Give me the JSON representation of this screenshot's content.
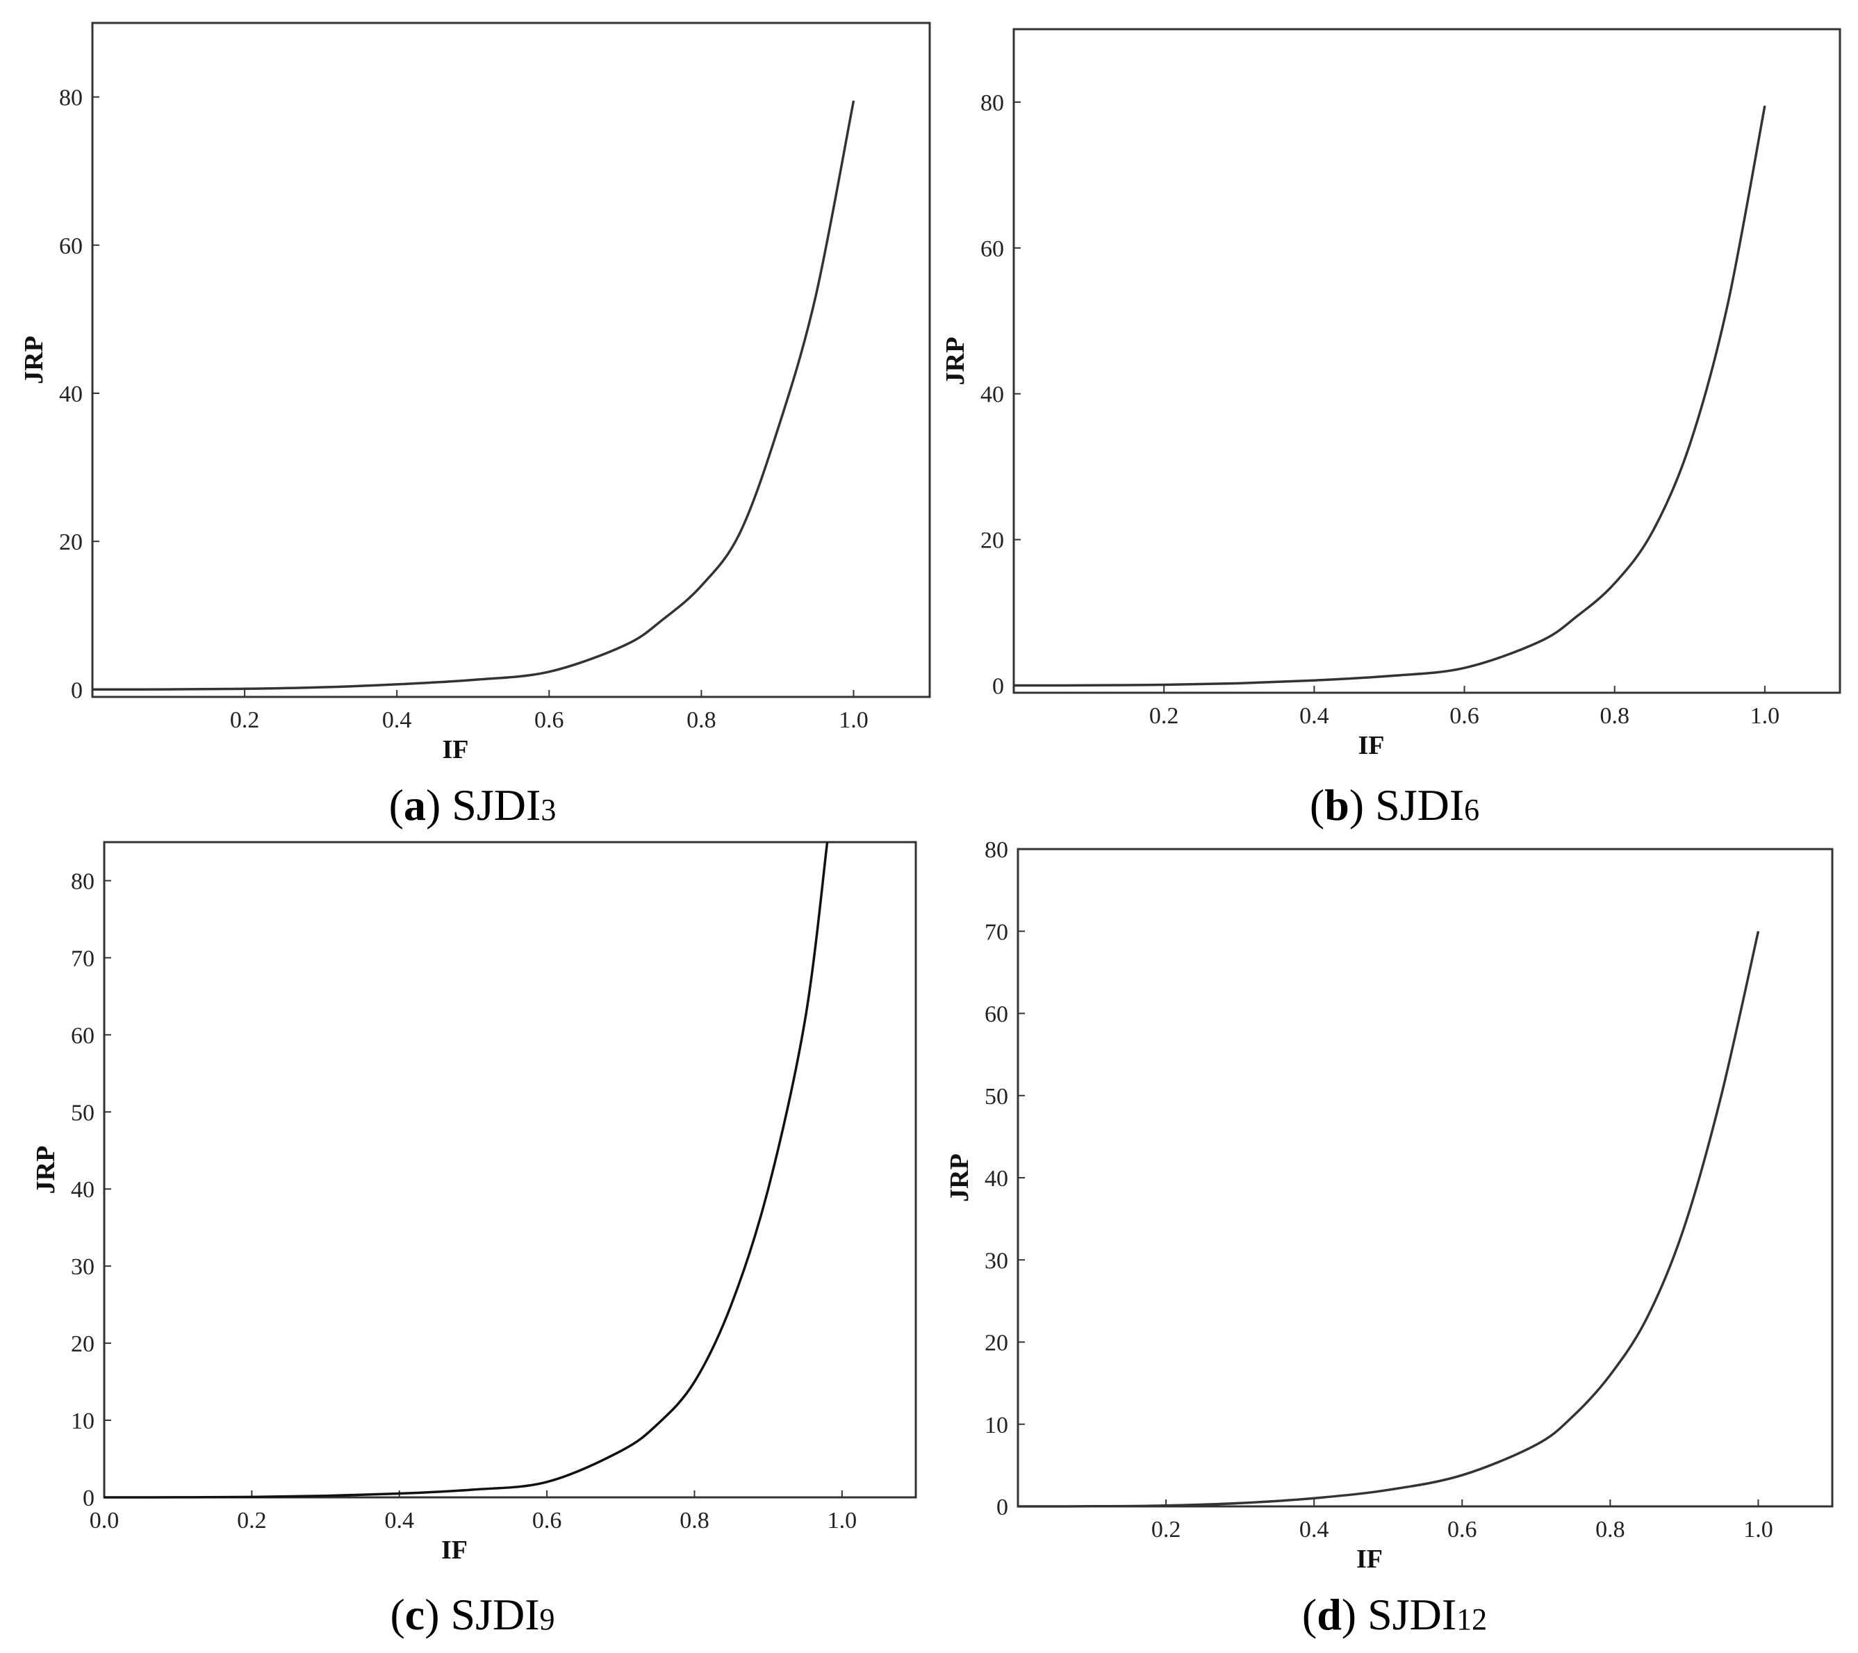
{
  "chart_data": [
    {
      "type": "line",
      "caption": {
        "open": "(",
        "letter": "a",
        "close": ")",
        "name": "SJDI",
        "sub": "3"
      },
      "xlabel": "IF",
      "ylabel": "JRP",
      "xlim": [
        0.0,
        1.1
      ],
      "ylim": [
        -1,
        90
      ],
      "xticks": [
        "0.2",
        "0.4",
        "0.6",
        "0.8",
        "1.0"
      ],
      "yticks": [
        "0",
        "20",
        "40",
        "60",
        "80"
      ],
      "grid": false,
      "series": [
        {
          "color": "#333333",
          "x": [
            0.0,
            0.1,
            0.2,
            0.3,
            0.4,
            0.5,
            0.6,
            0.7,
            0.75,
            0.8,
            0.85,
            0.9,
            0.95,
            1.0
          ],
          "y": [
            0.0,
            0.02,
            0.1,
            0.3,
            0.7,
            1.3,
            2.4,
            6.0,
            9.5,
            14.0,
            21.0,
            35.0,
            53.0,
            79.5
          ]
        }
      ]
    },
    {
      "type": "line",
      "caption": {
        "open": "(",
        "letter": "b",
        "close": ")",
        "name": "SJDI",
        "sub": "6"
      },
      "xlabel": "IF",
      "ylabel": "JRP",
      "xlim": [
        0.0,
        1.1
      ],
      "ylim": [
        -1,
        90
      ],
      "xticks": [
        "0.2",
        "0.4",
        "0.6",
        "0.8",
        "1.0"
      ],
      "yticks": [
        "0",
        "20",
        "40",
        "60",
        "80"
      ],
      "grid": false,
      "series": [
        {
          "color": "#333333",
          "x": [
            0.0,
            0.1,
            0.2,
            0.3,
            0.4,
            0.5,
            0.6,
            0.7,
            0.75,
            0.8,
            0.85,
            0.9,
            0.95,
            1.0
          ],
          "y": [
            0.0,
            0.02,
            0.1,
            0.3,
            0.7,
            1.3,
            2.4,
            6.0,
            9.5,
            14.0,
            21.0,
            33.0,
            52.0,
            79.5
          ]
        }
      ]
    },
    {
      "type": "line",
      "caption": {
        "open": "(",
        "letter": "c",
        "close": ")",
        "name": "SJDI",
        "sub": "9"
      },
      "xlabel": "IF",
      "ylabel": "JRP",
      "xlim": [
        0.0,
        1.1
      ],
      "ylim": [
        0,
        85
      ],
      "xticks": [
        "0.0",
        "0.2",
        "0.4",
        "0.6",
        "0.8",
        "1.0"
      ],
      "yticks": [
        "0",
        "10",
        "20",
        "30",
        "40",
        "50",
        "60",
        "70",
        "80"
      ],
      "grid": false,
      "series": [
        {
          "color": "#111111",
          "x": [
            0.0,
            0.1,
            0.2,
            0.3,
            0.4,
            0.5,
            0.6,
            0.7,
            0.75,
            0.8,
            0.85,
            0.9,
            0.95,
            0.98
          ],
          "y": [
            0.0,
            0.01,
            0.05,
            0.2,
            0.5,
            1.0,
            2.0,
            6.0,
            9.5,
            15.0,
            25.0,
            40.0,
            62.0,
            85.0
          ]
        }
      ]
    },
    {
      "type": "line",
      "caption": {
        "open": "(",
        "letter": "d",
        "close": ")",
        "name": "SJDI",
        "sub": "12"
      },
      "xlabel": "IF",
      "ylabel": "JRP",
      "xlim": [
        0.0,
        1.1
      ],
      "ylim": [
        0,
        80
      ],
      "xticks": [
        "0.2",
        "0.4",
        "0.6",
        "0.8",
        "1.0"
      ],
      "yticks": [
        "0",
        "10",
        "20",
        "30",
        "40",
        "50",
        "60",
        "70",
        "80"
      ],
      "grid": false,
      "series": [
        {
          "color": "#333333",
          "x": [
            0.0,
            0.1,
            0.2,
            0.3,
            0.4,
            0.5,
            0.6,
            0.7,
            0.75,
            0.8,
            0.85,
            0.9,
            0.95,
            1.0
          ],
          "y": [
            0.0,
            0.02,
            0.1,
            0.4,
            1.0,
            2.0,
            3.8,
            7.5,
            11.0,
            16.0,
            23.0,
            34.0,
            50.0,
            70.0
          ]
        }
      ]
    }
  ]
}
